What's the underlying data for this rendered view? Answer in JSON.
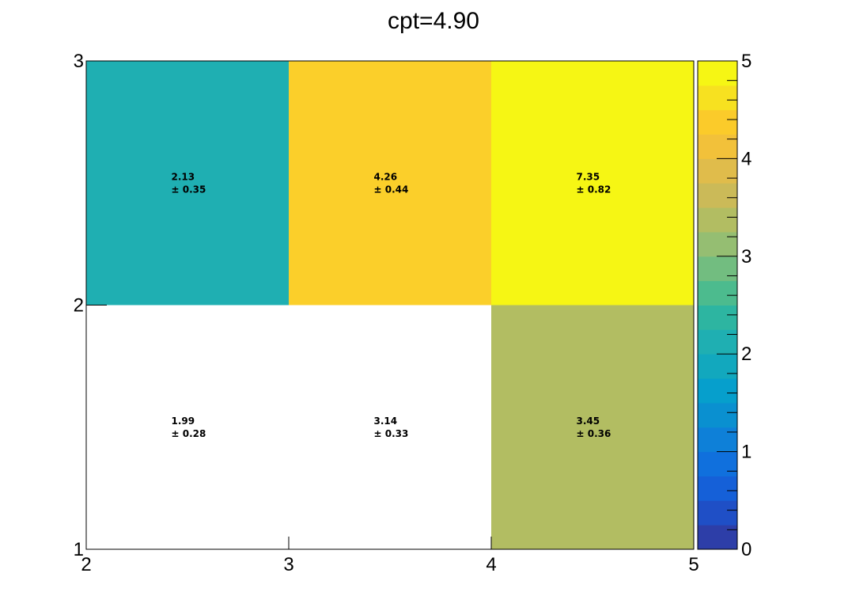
{
  "chart_data": {
    "type": "heatmap",
    "title": "cpt=4.90",
    "xlabel": "",
    "ylabel": "",
    "x_edges": [
      2,
      3,
      4,
      5
    ],
    "y_edges": [
      1,
      2,
      3
    ],
    "x_tick_labels": [
      "2",
      "3",
      "4",
      "5"
    ],
    "y_tick_labels": [
      "1",
      "2",
      "3"
    ],
    "z_range": [
      0,
      5
    ],
    "z_tick_labels": [
      "0",
      "1",
      "2",
      "3",
      "4",
      "5"
    ],
    "palette": [
      "#2d3ea8",
      "#1f4fc6",
      "#1560d8",
      "#1070dd",
      "#0e80d8",
      "#0a90d0",
      "#069fcc",
      "#12a8be",
      "#1fafb2",
      "#2db5a1",
      "#4cbb8e",
      "#72bd80",
      "#95be72",
      "#b2bd62",
      "#cbba58",
      "#e0bc4b",
      "#f2c13a",
      "#fbcb2a",
      "#f7e120",
      "#f6f614"
    ],
    "cells": [
      {
        "x": 2.5,
        "y": 1.5,
        "value": 1.99,
        "error": 0.28,
        "value_label": "1.99",
        "error_label": "± 0.28",
        "filled": false,
        "color": "#ffffff"
      },
      {
        "x": 3.5,
        "y": 1.5,
        "value": 3.14,
        "error": 0.33,
        "value_label": "3.14",
        "error_label": "± 0.33",
        "filled": false,
        "color": "#ffffff"
      },
      {
        "x": 4.5,
        "y": 1.5,
        "value": 3.45,
        "error": 0.36,
        "value_label": "3.45",
        "error_label": "± 0.36",
        "filled": true,
        "color": "#b2bd62"
      },
      {
        "x": 2.5,
        "y": 2.5,
        "value": 2.13,
        "error": 0.35,
        "value_label": "2.13",
        "error_label": "± 0.35",
        "filled": true,
        "color": "#1fafb2"
      },
      {
        "x": 3.5,
        "y": 2.5,
        "value": 4.26,
        "error": 0.44,
        "value_label": "4.26",
        "error_label": "± 0.44",
        "filled": true,
        "color": "#fbcf2a"
      },
      {
        "x": 4.5,
        "y": 2.5,
        "value": 7.35,
        "error": 0.82,
        "value_label": "7.35",
        "error_label": "± 0.82",
        "filled": true,
        "color": "#f6f614"
      }
    ],
    "grid": false,
    "legend": "none",
    "colorbar": "right"
  }
}
